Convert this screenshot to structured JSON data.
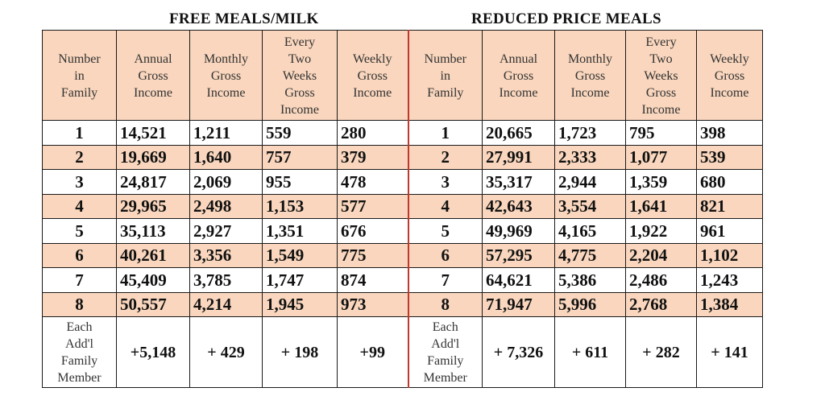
{
  "titles": {
    "free": "FREE MEALS/MILK",
    "reduced": "REDUCED PRICE MEALS"
  },
  "headers": [
    "Number\nin\nFamily",
    "Annual\nGross\nIncome",
    "Monthly\nGross\nIncome",
    "Every\nTwo\nWeeks\nGross\nIncome",
    "Weekly\nGross\nIncome",
    "Number\nin\nFamily",
    "Annual\nGross\nIncome",
    "Monthly\nGross\nIncome",
    "Every\nTwo\nWeeks\nGross\nIncome",
    "Weekly\nGross\nIncome"
  ],
  "rows": [
    [
      "1",
      "14,521",
      "1,211",
      "559",
      "280",
      "1",
      "20,665",
      "1,723",
      "795",
      "398"
    ],
    [
      "2",
      "19,669",
      "1,640",
      "757",
      "379",
      "2",
      "27,991",
      "2,333",
      "1,077",
      "539"
    ],
    [
      "3",
      "24,817",
      "2,069",
      "955",
      "478",
      "3",
      "35,317",
      "2,944",
      "1,359",
      "680"
    ],
    [
      "4",
      "29,965",
      "2,498",
      "1,153",
      "577",
      "4",
      "42,643",
      "3,554",
      "1,641",
      "821"
    ],
    [
      "5",
      "35,113",
      "2,927",
      "1,351",
      "676",
      "5",
      "49,969",
      "4,165",
      "1,922",
      "961"
    ],
    [
      "6",
      "40,261",
      "3,356",
      "1,549",
      "775",
      "6",
      "57,295",
      "4,775",
      "2,204",
      "1,102"
    ],
    [
      "7",
      "45,409",
      "3,785",
      "1,747",
      "874",
      "7",
      "64,621",
      "5,386",
      "2,486",
      "1,243"
    ],
    [
      "8",
      "50,557",
      "4,214",
      "1,945",
      "973",
      "8",
      "71,947",
      "5,996",
      "2,768",
      "1,384"
    ]
  ],
  "additional": [
    "Each\nAdd'l\nFamily\nMember",
    "+5,148",
    "+ 429",
    "+ 198",
    "+99",
    "Each\nAdd'l\nFamily\nMember",
    "+ 7,326",
    "+ 611",
    "+ 282",
    "+ 141"
  ]
}
